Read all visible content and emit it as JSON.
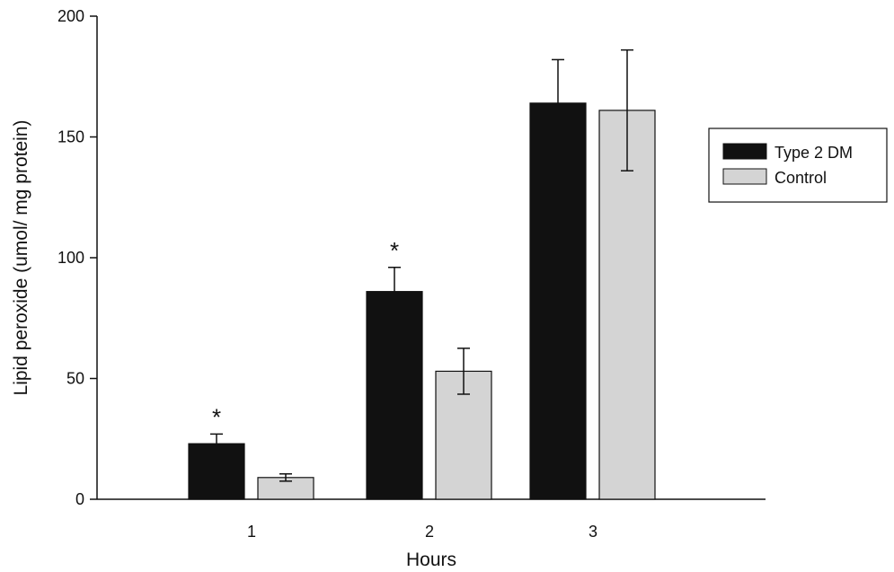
{
  "chart_data": {
    "type": "bar",
    "title": "",
    "xlabel": "Hours",
    "ylabel": "Lipid peroxide (umol/ mg protein)",
    "ylim": [
      0,
      200
    ],
    "yticks": [
      0,
      50,
      100,
      150,
      200
    ],
    "categories": [
      "1",
      "2",
      "3"
    ],
    "series": [
      {
        "name": "Type 2 DM",
        "color": "#111111",
        "values": [
          23,
          86,
          164
        ],
        "errors": [
          4,
          10,
          18
        ]
      },
      {
        "name": "Control",
        "color": "#d4d4d4",
        "values": [
          9,
          53,
          161
        ],
        "errors": [
          1.5,
          9.5,
          25
        ]
      }
    ],
    "annotations": [
      {
        "category": "1",
        "series": "Type 2 DM",
        "text": "*"
      },
      {
        "category": "2",
        "series": "Type 2 DM",
        "text": "*"
      }
    ],
    "grid": false,
    "legend_position": "right"
  }
}
